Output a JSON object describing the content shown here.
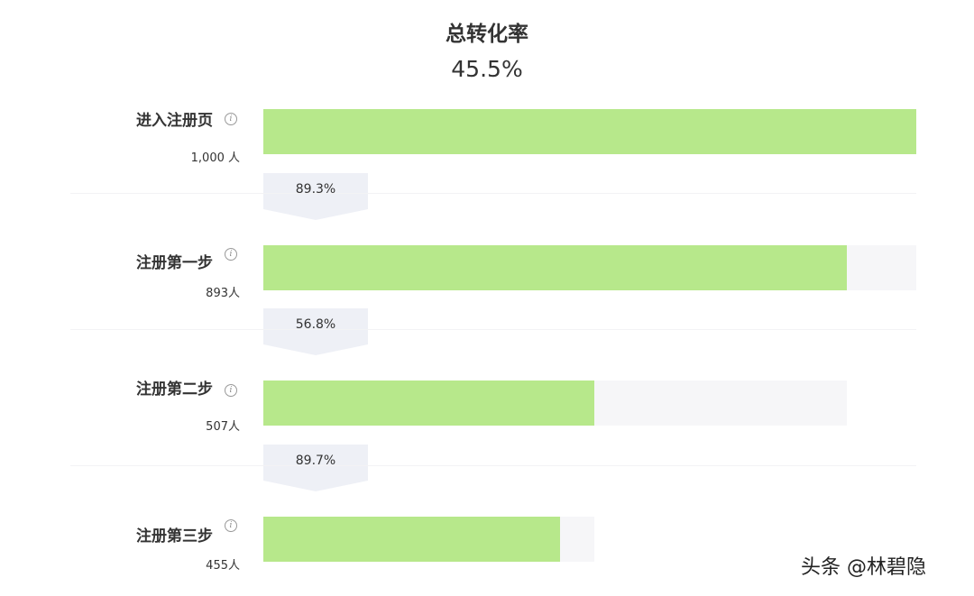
{
  "chart_data": {
    "type": "funnel",
    "title": "总转化率",
    "total_rate": "45.5%",
    "unit": "人",
    "stages": [
      {
        "name": "进入注册页",
        "value": 1000,
        "count_label": "1,000 人"
      },
      {
        "name": "注册第一步",
        "value": 893,
        "count_label": "893人"
      },
      {
        "name": "注册第二步",
        "value": 507,
        "count_label": "507人"
      },
      {
        "name": "注册第三步",
        "value": 455,
        "count_label": "455人"
      }
    ],
    "conversions": [
      "89.3%",
      "56.8%",
      "89.7%"
    ],
    "colors": {
      "bar": "#b7e88b",
      "track": "#f6f6f8",
      "arrow": "#eef0f6"
    }
  },
  "watermark": "头条 @林碧隐"
}
